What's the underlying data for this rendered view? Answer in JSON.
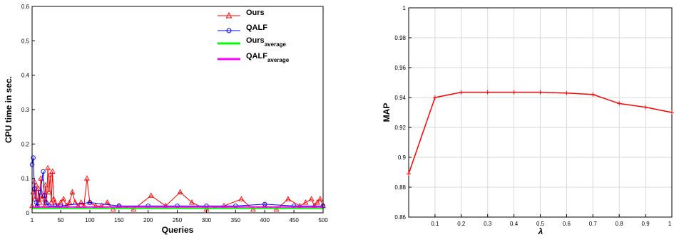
{
  "colors": {
    "ours": "#ff0000",
    "qalf": "#0000ff",
    "ours_average": "#00ff00",
    "qalf_average": "#ff00ff",
    "grid": "#d9d9d9",
    "axis": "#000000"
  },
  "chart_data": [
    {
      "type": "line",
      "xlabel": "Queries",
      "ylabel": "CPU time in sec.",
      "xlim": [
        1,
        500
      ],
      "ylim": [
        0,
        0.6
      ],
      "x_ticks": [
        "1",
        "50",
        "100",
        "150",
        "200",
        "250",
        "300",
        "350",
        "400",
        "450",
        "500"
      ],
      "x_tick_values": [
        1,
        50,
        100,
        150,
        200,
        250,
        300,
        350,
        400,
        450,
        500
      ],
      "y_ticks": [
        "0",
        "0.1",
        "0.2",
        "0.3",
        "0.4",
        "0.5",
        "0.6"
      ],
      "y_tick_values": [
        0,
        0.1,
        0.2,
        0.3,
        0.4,
        0.5,
        0.6
      ],
      "grid": false,
      "legend_position": "top-right",
      "legend": [
        {
          "label": "Ours",
          "sub": "",
          "marker": "triangle",
          "color_key": "ours"
        },
        {
          "label": "QALF",
          "sub": "",
          "marker": "circle",
          "color_key": "qalf"
        },
        {
          "label": "Ours",
          "sub": "average",
          "marker": "none",
          "color_key": "ours_average"
        },
        {
          "label": "QALF",
          "sub": "average",
          "marker": "none",
          "color_key": "qalf_average"
        }
      ],
      "series": [
        {
          "name": "Ours",
          "color_key": "ours",
          "marker": "triangle",
          "points": [
            [
              1,
              0.02
            ],
            [
              3,
              0.06
            ],
            [
              5,
              0.09
            ],
            [
              6,
              0.04
            ],
            [
              8,
              0.08
            ],
            [
              10,
              0.02
            ],
            [
              12,
              0.07
            ],
            [
              14,
              0.03
            ],
            [
              16,
              0.1
            ],
            [
              18,
              0.04
            ],
            [
              20,
              0.05
            ],
            [
              22,
              0.02
            ],
            [
              24,
              0.08
            ],
            [
              26,
              0.03
            ],
            [
              28,
              0.13
            ],
            [
              30,
              0.06
            ],
            [
              32,
              0.11
            ],
            [
              34,
              0.03
            ],
            [
              36,
              0.12
            ],
            [
              38,
              0.04
            ],
            [
              40,
              0.03
            ],
            [
              45,
              0.02
            ],
            [
              50,
              0.03
            ],
            [
              55,
              0.04
            ],
            [
              60,
              0.02
            ],
            [
              65,
              0.03
            ],
            [
              70,
              0.06
            ],
            [
              75,
              0.03
            ],
            [
              80,
              0.02
            ],
            [
              85,
              0.03
            ],
            [
              90,
              0.02
            ],
            [
              95,
              0.1
            ],
            [
              100,
              0.03
            ],
            [
              110,
              0.02
            ],
            [
              120,
              0.02
            ],
            [
              130,
              0.03
            ],
            [
              140,
              0.01
            ],
            [
              150,
              0.02
            ],
            [
              175,
              0.01
            ],
            [
              205,
              0.05
            ],
            [
              230,
              0.02
            ],
            [
              255,
              0.06
            ],
            [
              275,
              0.03
            ],
            [
              300,
              0.01
            ],
            [
              330,
              0.02
            ],
            [
              360,
              0.04
            ],
            [
              380,
              0.01
            ],
            [
              400,
              0.02
            ],
            [
              420,
              0.01
            ],
            [
              440,
              0.04
            ],
            [
              460,
              0.02
            ],
            [
              470,
              0.03
            ],
            [
              480,
              0.04
            ],
            [
              485,
              0.02
            ],
            [
              490,
              0.03
            ],
            [
              495,
              0.04
            ],
            [
              500,
              0.02
            ]
          ]
        },
        {
          "name": "QALF",
          "color_key": "qalf",
          "marker": "circle",
          "points": [
            [
              1,
              0.14
            ],
            [
              3,
              0.16
            ],
            [
              5,
              0.07
            ],
            [
              8,
              0.03
            ],
            [
              10,
              0.02
            ],
            [
              15,
              0.06
            ],
            [
              20,
              0.12
            ],
            [
              22,
              0.05
            ],
            [
              25,
              0.03
            ],
            [
              30,
              0.02
            ],
            [
              40,
              0.02
            ],
            [
              50,
              0.02
            ],
            [
              100,
              0.03
            ],
            [
              150,
              0.02
            ],
            [
              200,
              0.02
            ],
            [
              250,
              0.02
            ],
            [
              300,
              0.02
            ],
            [
              350,
              0.02
            ],
            [
              400,
              0.025
            ],
            [
              450,
              0.02
            ],
            [
              500,
              0.02
            ]
          ]
        },
        {
          "name": "Ours average",
          "color_key": "ours_average",
          "marker": "none",
          "points": [
            [
              1,
              0.013
            ],
            [
              500,
              0.013
            ]
          ]
        },
        {
          "name": "QALF average",
          "color_key": "qalf_average",
          "marker": "none",
          "points": [
            [
              1,
              0.017
            ],
            [
              500,
              0.017
            ]
          ]
        }
      ]
    },
    {
      "type": "line",
      "xlabel": "λ",
      "ylabel": "MAP",
      "xlim": [
        0,
        1
      ],
      "ylim": [
        0.86,
        1
      ],
      "x_ticks": [
        "0.1",
        "0.2",
        "0.3",
        "0.4",
        "0.5",
        "0.6",
        "0.7",
        "0.8",
        "0.9",
        "1"
      ],
      "x_tick_values": [
        0.1,
        0.2,
        0.3,
        0.4,
        0.5,
        0.6,
        0.7,
        0.8,
        0.9,
        1.0
      ],
      "y_ticks": [
        "0.86",
        "0.88",
        "0.9",
        "0.92",
        "0.94",
        "0.96",
        "0.98",
        "1"
      ],
      "y_tick_values": [
        0.86,
        0.88,
        0.9,
        0.92,
        0.94,
        0.96,
        0.98,
        1.0
      ],
      "grid": true,
      "series": [
        {
          "name": "",
          "color_key": "ours",
          "marker": "plus",
          "x": [
            0.0,
            0.1,
            0.2,
            0.3,
            0.4,
            0.5,
            0.6,
            0.7,
            0.8,
            0.9,
            1.0
          ],
          "values": [
            0.889,
            0.94,
            0.9435,
            0.9435,
            0.9435,
            0.9435,
            0.943,
            0.942,
            0.936,
            0.9335,
            0.93
          ]
        }
      ]
    }
  ]
}
